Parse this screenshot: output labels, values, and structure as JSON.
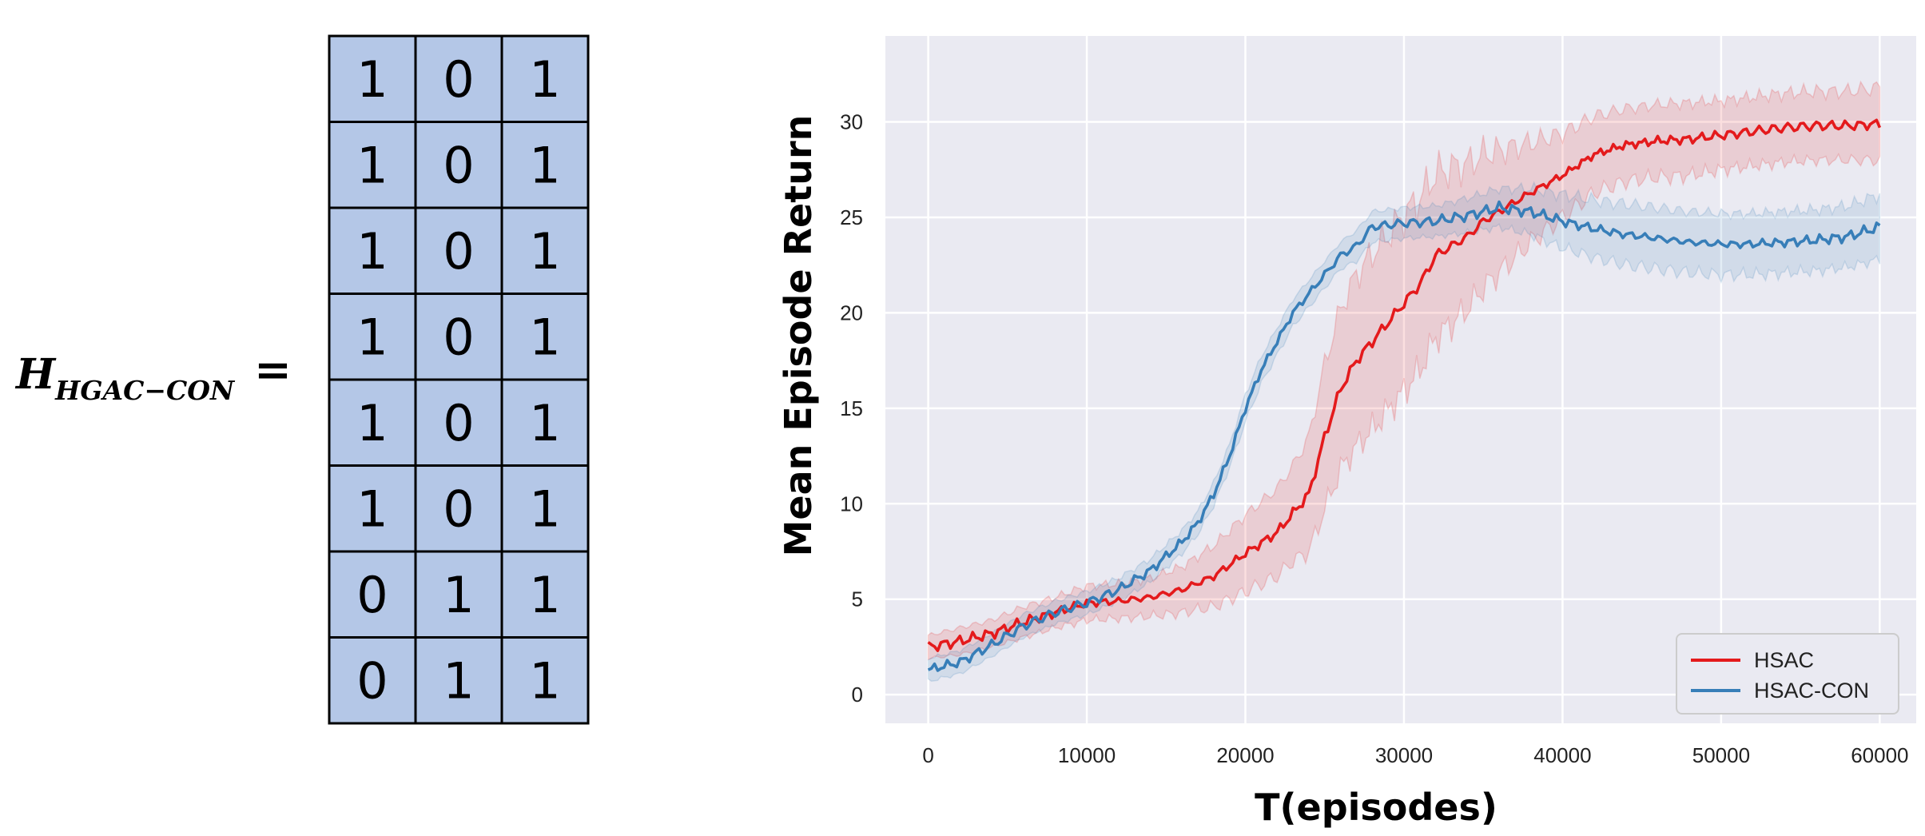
{
  "equation": {
    "lhs_symbol": "H",
    "lhs_subscript": "HGAC−CON",
    "equals": "="
  },
  "matrix": {
    "rows": [
      [
        "1",
        "0",
        "1"
      ],
      [
        "1",
        "0",
        "1"
      ],
      [
        "1",
        "0",
        "1"
      ],
      [
        "1",
        "0",
        "1"
      ],
      [
        "1",
        "0",
        "1"
      ],
      [
        "1",
        "0",
        "1"
      ],
      [
        "0",
        "1",
        "1"
      ],
      [
        "0",
        "1",
        "1"
      ]
    ],
    "cell_color": "#b4c7e7",
    "border_color": "#000000"
  },
  "chart_data": {
    "type": "line",
    "xlabel": "T(episodes)",
    "ylabel": "Mean Episode Return",
    "xlim": [
      -2700,
      62300
    ],
    "ylim": [
      -1.5,
      34.5
    ],
    "xticks": [
      0,
      10000,
      20000,
      30000,
      40000,
      50000,
      60000
    ],
    "yticks": [
      0,
      5,
      10,
      15,
      20,
      25,
      30
    ],
    "grid": true,
    "background": "#eaeaf2",
    "legend_placement": "lower-right",
    "series": [
      {
        "name": "HSAC",
        "color": "#e41a1c",
        "x": [
          0,
          2000,
          4000,
          6000,
          8000,
          10000,
          12000,
          14000,
          16000,
          18000,
          20000,
          22000,
          23000,
          24000,
          25000,
          26000,
          27000,
          28000,
          29000,
          30000,
          31000,
          32000,
          33000,
          34000,
          35000,
          36000,
          37000,
          38000,
          40000,
          42000,
          44000,
          46000,
          48000,
          50000,
          52000,
          54000,
          56000,
          58000,
          60000
        ],
        "y": [
          2.5,
          2.8,
          3.2,
          3.8,
          4.3,
          4.8,
          4.9,
          5.1,
          5.5,
          6.2,
          7.4,
          8.5,
          9.5,
          10.5,
          13.5,
          16,
          17.5,
          18.5,
          19.5,
          20.5,
          21.5,
          23,
          23.5,
          24,
          24.8,
          25.3,
          25.8,
          26.3,
          27.2,
          28.3,
          28.8,
          29,
          29.1,
          29.3,
          29.5,
          29.7,
          29.8,
          29.8,
          29.9
        ],
        "band": [
          0.6,
          0.7,
          0.7,
          0.8,
          0.8,
          0.9,
          0.9,
          1.0,
          1.2,
          1.6,
          2.0,
          2.3,
          2.5,
          3.0,
          3.8,
          4.2,
          4.5,
          4.6,
          4.6,
          4.6,
          4.5,
          4.3,
          4.1,
          3.8,
          3.5,
          3.2,
          2.9,
          2.6,
          2.2,
          2.0,
          1.9,
          1.9,
          1.9,
          1.8,
          1.8,
          1.8,
          1.8,
          1.8,
          1.9
        ]
      },
      {
        "name": "HSAC-CON",
        "color": "#377eb8",
        "x": [
          0,
          2000,
          4000,
          6000,
          8000,
          10000,
          12000,
          14000,
          16000,
          17000,
          18000,
          19000,
          20000,
          21000,
          22000,
          23000,
          24000,
          25000,
          26000,
          27000,
          28000,
          30000,
          32000,
          34000,
          36000,
          38000,
          40000,
          42000,
          44000,
          46000,
          48000,
          50000,
          52000,
          54000,
          56000,
          58000,
          60000
        ],
        "y": [
          1.3,
          1.7,
          2.6,
          3.6,
          4.3,
          4.8,
          5.5,
          6.5,
          8.0,
          9.0,
          10.5,
          12.5,
          15.0,
          17.0,
          18.5,
          20.0,
          21.0,
          22.0,
          23.0,
          23.5,
          24.5,
          24.7,
          24.8,
          25.1,
          25.5,
          25.3,
          24.8,
          24.4,
          24.1,
          23.9,
          23.7,
          23.6,
          23.6,
          23.7,
          23.8,
          24.0,
          24.5
        ],
        "band": [
          0.6,
          0.6,
          0.6,
          0.6,
          0.6,
          0.6,
          0.6,
          0.6,
          0.6,
          0.6,
          0.6,
          0.6,
          0.7,
          0.7,
          0.7,
          0.7,
          0.7,
          0.7,
          0.7,
          0.8,
          0.8,
          0.8,
          0.8,
          0.9,
          1.0,
          1.2,
          1.4,
          1.5,
          1.6,
          1.6,
          1.6,
          1.6,
          1.6,
          1.6,
          1.6,
          1.6,
          1.7
        ]
      }
    ]
  }
}
